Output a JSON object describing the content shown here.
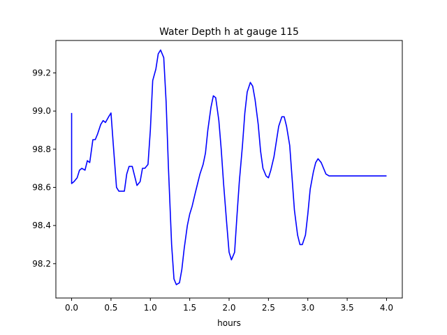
{
  "chart_data": {
    "type": "line",
    "title": "Water Depth h at gauge 115",
    "xlabel": "hours",
    "ylabel": "",
    "xlim": [
      -0.2,
      4.2
    ],
    "ylim": [
      98.02,
      99.37
    ],
    "xticks": [
      0.0,
      0.5,
      1.0,
      1.5,
      2.0,
      2.5,
      3.0,
      3.5,
      4.0
    ],
    "xtick_labels": [
      "0.0",
      "0.5",
      "1.0",
      "1.5",
      "2.0",
      "2.5",
      "3.0",
      "3.5",
      "4.0"
    ],
    "yticks": [
      98.2,
      98.4,
      98.6,
      98.8,
      99.0,
      99.2
    ],
    "ytick_labels": [
      "98.2",
      "98.4",
      "98.6",
      "98.8",
      "99.0",
      "99.2"
    ],
    "grid": false,
    "series": [
      {
        "color": "#0000ff",
        "x": [
          0.0,
          0.0,
          0.03,
          0.07,
          0.1,
          0.13,
          0.17,
          0.2,
          0.23,
          0.27,
          0.3,
          0.33,
          0.37,
          0.4,
          0.43,
          0.47,
          0.5,
          0.53,
          0.57,
          0.6,
          0.63,
          0.67,
          0.7,
          0.73,
          0.77,
          0.8,
          0.83,
          0.87,
          0.9,
          0.93,
          0.97,
          1.0,
          1.03,
          1.07,
          1.1,
          1.13,
          1.17,
          1.2,
          1.23,
          1.27,
          1.3,
          1.33,
          1.37,
          1.4,
          1.43,
          1.47,
          1.5,
          1.53,
          1.57,
          1.6,
          1.63,
          1.67,
          1.7,
          1.73,
          1.77,
          1.8,
          1.83,
          1.87,
          1.9,
          1.93,
          1.97,
          2.0,
          2.03,
          2.07,
          2.1,
          2.13,
          2.17,
          2.2,
          2.23,
          2.27,
          2.3,
          2.33,
          2.37,
          2.4,
          2.43,
          2.47,
          2.5,
          2.53,
          2.57,
          2.6,
          2.63,
          2.67,
          2.7,
          2.73,
          2.77,
          2.8,
          2.83,
          2.87,
          2.9,
          2.93,
          2.97,
          3.0,
          3.03,
          3.07,
          3.1,
          3.13,
          3.17,
          3.2,
          3.23,
          3.27,
          3.3,
          3.33,
          3.37,
          3.4,
          3.43,
          3.47,
          3.5,
          3.53,
          3.57,
          3.6,
          3.63,
          3.67,
          3.7,
          3.73,
          3.77,
          3.8,
          3.83,
          3.87,
          3.9,
          3.93,
          3.97,
          4.0
        ],
        "y": [
          98.99,
          98.62,
          98.63,
          98.65,
          98.69,
          98.7,
          98.69,
          98.74,
          98.73,
          98.85,
          98.85,
          98.88,
          98.93,
          98.95,
          98.94,
          98.97,
          98.99,
          98.82,
          98.6,
          98.58,
          98.58,
          98.58,
          98.67,
          98.71,
          98.71,
          98.66,
          98.61,
          98.63,
          98.7,
          98.7,
          98.72,
          98.9,
          99.16,
          99.22,
          99.3,
          99.32,
          99.28,
          99.05,
          98.7,
          98.3,
          98.12,
          98.09,
          98.1,
          98.17,
          98.28,
          98.4,
          98.46,
          98.5,
          98.57,
          98.62,
          98.67,
          98.72,
          98.78,
          98.9,
          99.02,
          99.08,
          99.07,
          98.95,
          98.8,
          98.62,
          98.41,
          98.26,
          98.22,
          98.26,
          98.45,
          98.63,
          98.82,
          98.99,
          99.1,
          99.15,
          99.13,
          99.06,
          98.93,
          98.79,
          98.7,
          98.66,
          98.65,
          98.69,
          98.76,
          98.84,
          98.92,
          98.97,
          98.97,
          98.92,
          98.82,
          98.65,
          98.48,
          98.35,
          98.3,
          98.3,
          98.35,
          98.46,
          98.59,
          98.68,
          98.73,
          98.75,
          98.73,
          98.7,
          98.67,
          98.66,
          98.66,
          98.66,
          98.66,
          98.66,
          98.66,
          98.66,
          98.66,
          98.66,
          98.66,
          98.66,
          98.66,
          98.66,
          98.66,
          98.66,
          98.66,
          98.66,
          98.66,
          98.66,
          98.66,
          98.66,
          98.66,
          98.66
        ]
      }
    ]
  }
}
